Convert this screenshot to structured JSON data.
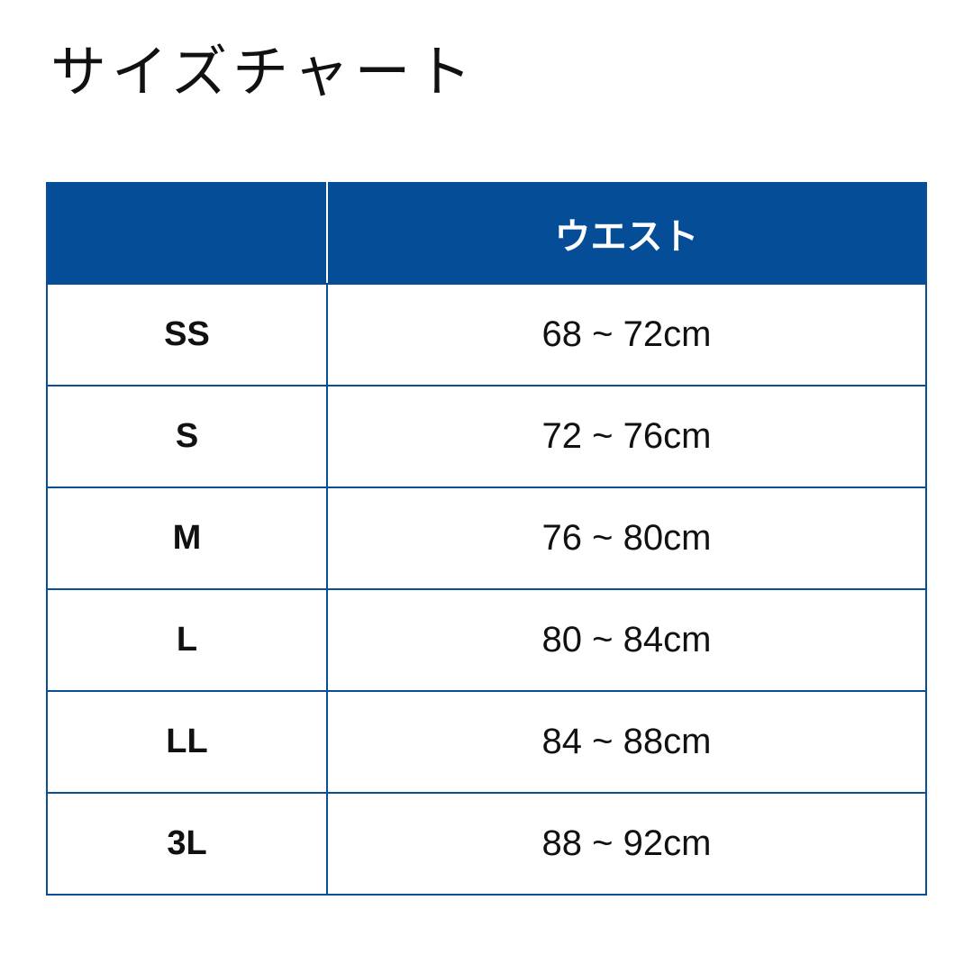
{
  "title": "サイズチャート",
  "table": {
    "header": [
      "",
      "ウエスト"
    ],
    "rows": [
      {
        "size": "SS",
        "waist": "68 ~ 72cm"
      },
      {
        "size": "S",
        "waist": "72 ~ 76cm"
      },
      {
        "size": "M",
        "waist": "76 ~ 80cm"
      },
      {
        "size": "L",
        "waist": "80 ~ 84cm"
      },
      {
        "size": "LL",
        "waist": "84 ~ 88cm"
      },
      {
        "size": "3L",
        "waist": "88 ~ 92cm"
      }
    ]
  },
  "colors": {
    "header_bg": "#054d96",
    "border": "#0a4e96"
  }
}
